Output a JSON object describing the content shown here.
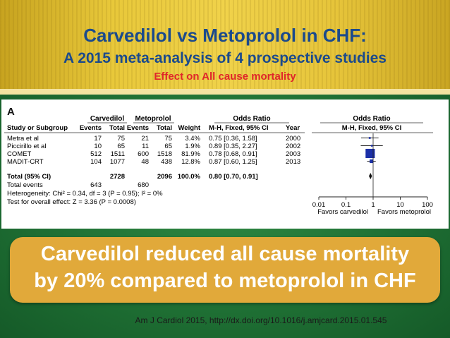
{
  "header": {
    "title": "Carvedilol vs Metoprolol in CHF:",
    "subtitle": "A 2015 meta-analysis of 4 prospective studies",
    "effect": "Effect on All cause mortality"
  },
  "colors": {
    "title": "#1b4a8c",
    "effect": "#e0262a",
    "banner": "#e1a93a",
    "marker": "#1b2fa8"
  },
  "chart_data": {
    "type": "forest",
    "panel_label": "A",
    "group_headers": {
      "carvedilol": "Carvedilol",
      "metoprolol": "Metoprolol",
      "or_table": "Odds Ratio",
      "or_plot": "Odds Ratio"
    },
    "columns": {
      "study": "Study or Subgroup",
      "events1": "Events",
      "total1": "Total",
      "events2": "Events",
      "total2": "Total",
      "weight": "Weight",
      "or": "M-H, Fixed, 95% CI",
      "year": "Year",
      "plot": "M-H, Fixed, 95% CI"
    },
    "studies": [
      {
        "name": "Metra et al",
        "events1": "17",
        "total1": "75",
        "events2": "21",
        "total2": "75",
        "weight": "3.4%",
        "or_text": "0.75 [0.36, 1.58]",
        "year": "2000",
        "or": 0.75,
        "lo": 0.36,
        "hi": 1.58,
        "weight_pct": 3.4
      },
      {
        "name": "Piccirillo et al",
        "events1": "10",
        "total1": "65",
        "events2": "11",
        "total2": "65",
        "weight": "1.9%",
        "or_text": "0.89 [0.35, 2.27]",
        "year": "2002",
        "or": 0.89,
        "lo": 0.35,
        "hi": 2.27,
        "weight_pct": 1.9
      },
      {
        "name": "COMET",
        "events1": "512",
        "total1": "1511",
        "events2": "600",
        "total2": "1518",
        "weight": "81.9%",
        "or_text": "0.78 [0.68, 0.91]",
        "year": "2003",
        "or": 0.78,
        "lo": 0.68,
        "hi": 0.91,
        "weight_pct": 81.9
      },
      {
        "name": "MADIT-CRT",
        "events1": "104",
        "total1": "1077",
        "events2": "48",
        "total2": "438",
        "weight": "12.8%",
        "or_text": "0.87 [0.60, 1.25]",
        "year": "2013",
        "or": 0.87,
        "lo": 0.6,
        "hi": 1.25,
        "weight_pct": 12.8
      }
    ],
    "total": {
      "name": "Total (95% CI)",
      "total1": "2728",
      "total2": "2096",
      "weight": "100.0%",
      "or_text": "0.80 [0.70, 0.91]",
      "or": 0.8,
      "lo": 0.7,
      "hi": 0.91
    },
    "total_events": {
      "label": "Total events",
      "events1": "643",
      "events2": "680"
    },
    "heterogeneity": "Heterogeneity: Chi² = 0.34, df = 3 (P = 0.95); I² = 0%",
    "overall_effect": "Test for overall effect: Z = 3.36 (P = 0.0008)",
    "x_scale": "log",
    "xlim": [
      0.01,
      100
    ],
    "ticks": [
      {
        "value": 0.01,
        "label": "0.01"
      },
      {
        "value": 0.1,
        "label": "0.1"
      },
      {
        "value": 1,
        "label": "1"
      },
      {
        "value": 10,
        "label": "10"
      },
      {
        "value": 100,
        "label": "100"
      }
    ],
    "favors_left": "Favors carvedilol",
    "favors_right": "Favors metoprolol"
  },
  "banner": {
    "line1": "Carvedilol reduced all cause mortality",
    "line2": "by 20% compared to metoprolol in CHF"
  },
  "citation": "Am J Cardiol 2015,  http://dx.doi.org/10.1016/j.amjcard.2015.01.545"
}
